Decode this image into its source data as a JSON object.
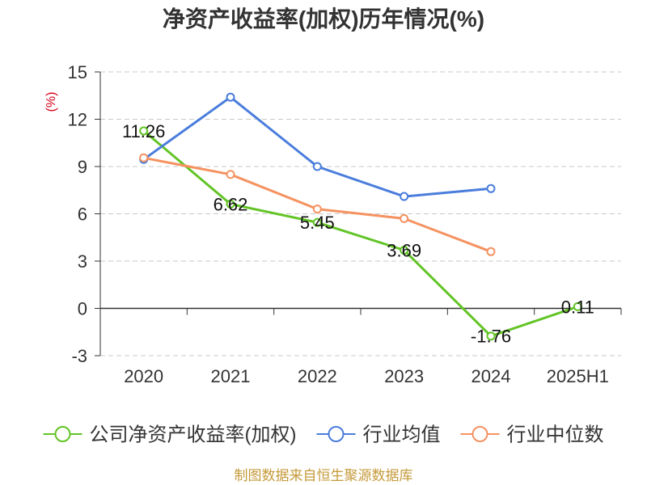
{
  "chart_data": {
    "type": "line",
    "title": "净资产收益率(加权)历年情况(%)",
    "ylabel": "(%)",
    "categories": [
      "2020",
      "2021",
      "2022",
      "2023",
      "2024",
      "2025H1"
    ],
    "ylim": [
      -3,
      15
    ],
    "yticks": [
      15,
      12,
      9,
      6,
      3,
      0,
      -3
    ],
    "grid": true,
    "legend": "bottom",
    "series": [
      {
        "name": "公司净资产收益率(加权)",
        "color": "#62c426",
        "data_labels": true,
        "values": [
          11.26,
          6.62,
          5.45,
          3.69,
          -1.76,
          0.11
        ]
      },
      {
        "name": "行业均值",
        "color": "#4a7ddc",
        "data_labels": false,
        "values": [
          9.45,
          13.4,
          9.0,
          7.1,
          7.6,
          null
        ]
      },
      {
        "name": "行业中位数",
        "color": "#f59260",
        "data_labels": false,
        "values": [
          9.55,
          8.5,
          6.3,
          5.7,
          3.6,
          null
        ]
      }
    ]
  },
  "source_note": "制图数据来自恒生聚源数据库"
}
